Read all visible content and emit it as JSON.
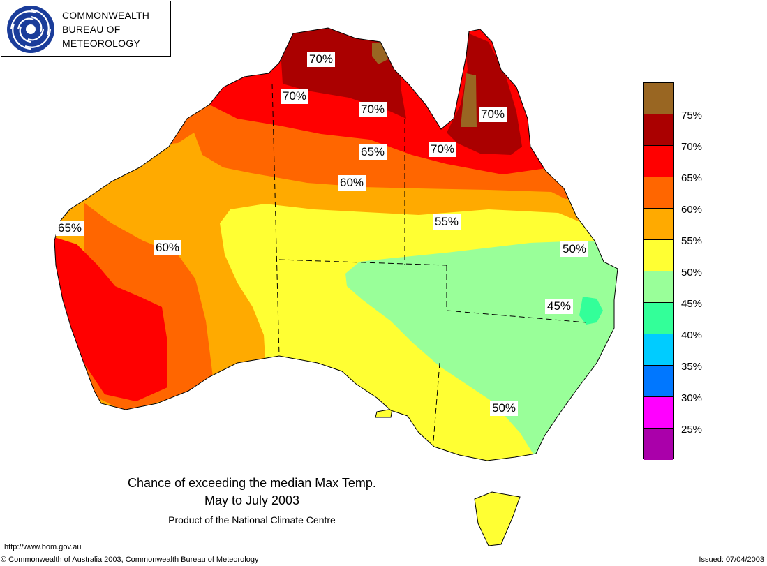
{
  "logo": {
    "line1": "COMMONWEALTH",
    "line2": "BUREAU OF",
    "line3": "METEOROLOGY"
  },
  "map_labels": [
    "70%",
    "70%",
    "70%",
    "70%",
    "70%",
    "65%",
    "60%",
    "55%",
    "50%",
    "65%",
    "60%",
    "45%",
    "50%"
  ],
  "legend": {
    "colors": [
      "#996622",
      "#aa0000",
      "#ff0000",
      "#ff6600",
      "#ffaa00",
      "#ffff33",
      "#99ff99",
      "#33ff99",
      "#00ccff",
      "#0077ff",
      "#ff00ff",
      "#aa00aa"
    ],
    "labels": [
      "75%",
      "70%",
      "65%",
      "60%",
      "55%",
      "50%",
      "45%",
      "40%",
      "35%",
      "30%",
      "25%"
    ]
  },
  "title": {
    "line1": "Chance of exceeding the median Max Temp.",
    "line2": "May to July 2003",
    "line3": "Product of the National Climate Centre"
  },
  "footer": {
    "url": "http://www.bom.gov.au",
    "copyright": "© Commonwealth of Australia 2003, Commonwealth Bureau of Meteorology",
    "issued": "Issued: 07/04/2003"
  }
}
